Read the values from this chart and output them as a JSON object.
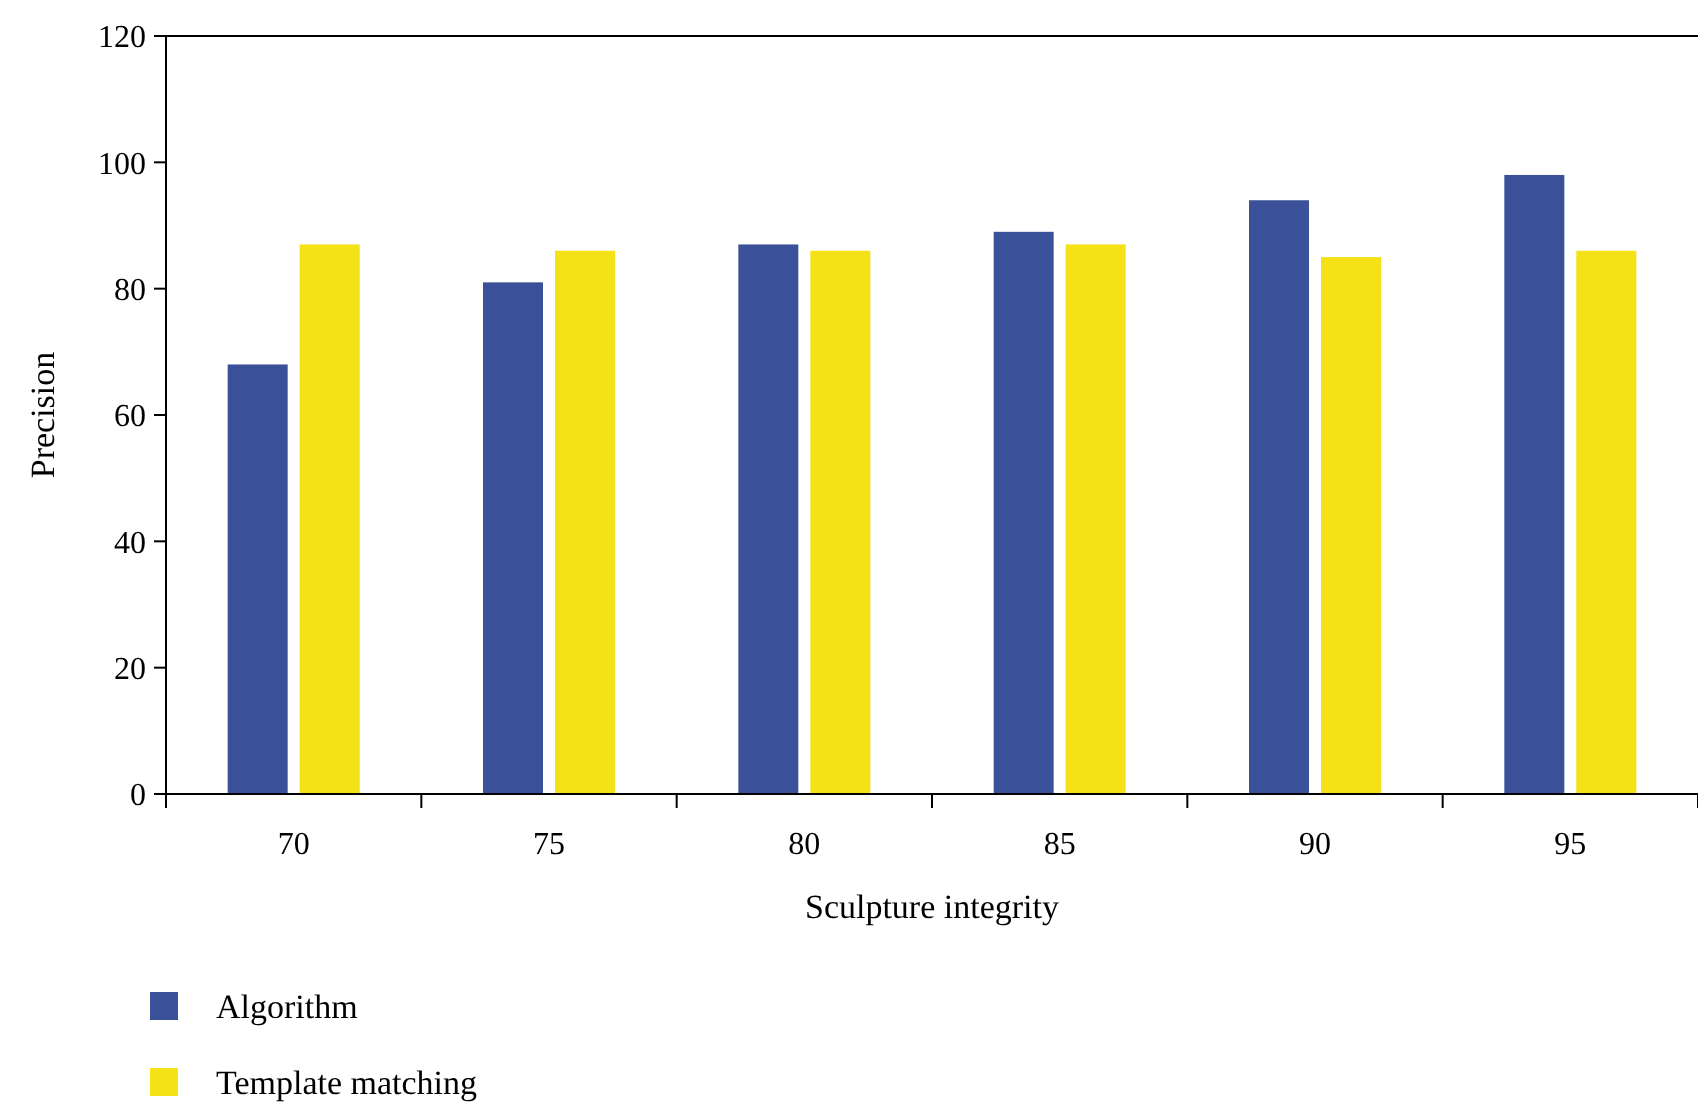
{
  "chart_data": {
    "type": "bar",
    "xlabel": "Sculpture integrity",
    "ylabel": "Precision",
    "categories": [
      "70",
      "75",
      "80",
      "85",
      "90",
      "95"
    ],
    "series": [
      {
        "name": "Algorithm",
        "color": "#3a5199",
        "values": [
          68,
          81,
          87,
          89,
          94,
          98
        ]
      },
      {
        "name": "Template matching",
        "color": "#f5e216",
        "values": [
          87,
          86,
          86,
          87,
          85,
          86
        ]
      }
    ],
    "ylim": [
      0,
      120
    ],
    "yticks": [
      0,
      20,
      40,
      60,
      80,
      100,
      120
    ],
    "grid": false,
    "legend": "bottom left"
  }
}
